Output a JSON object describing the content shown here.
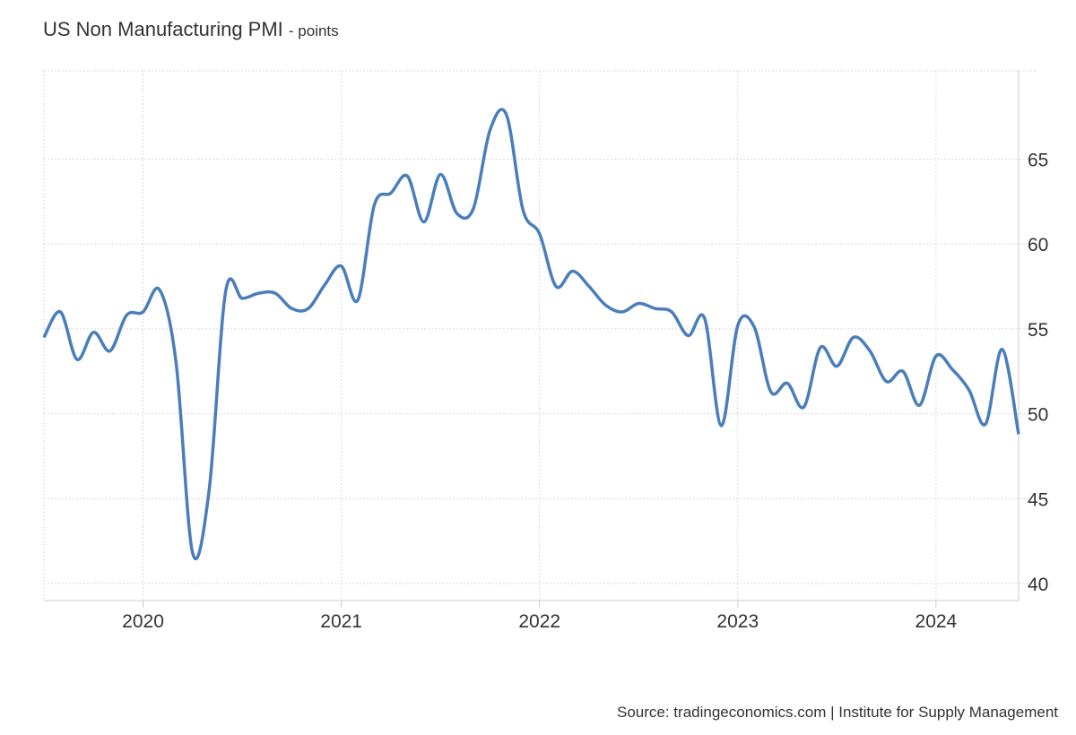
{
  "title": "US Non Manufacturing PMI",
  "unit": "- points",
  "source": "Source: tradingeconomics.com | Institute for Supply Management",
  "colors": {
    "line": "#4a7ebb",
    "grid": "#d9d9d9"
  },
  "chart_data": {
    "type": "line",
    "title": "US Non Manufacturing PMI",
    "ylabel": "points",
    "ylim": [
      39.0,
      70.2
    ],
    "xlim": [
      "2019-07",
      "2024-06"
    ],
    "grid": true,
    "y_ticks": [
      40,
      45,
      50,
      55,
      60,
      65
    ],
    "x_ticks": [
      "2020",
      "2021",
      "2022",
      "2023",
      "2024"
    ],
    "series": [
      {
        "name": "US Non Manufacturing PMI",
        "x": [
          "2019-07",
          "2019-08",
          "2019-09",
          "2019-10",
          "2019-11",
          "2019-12",
          "2020-01",
          "2020-02",
          "2020-03",
          "2020-04",
          "2020-05",
          "2020-06",
          "2020-07",
          "2020-08",
          "2020-09",
          "2020-10",
          "2020-11",
          "2020-12",
          "2021-01",
          "2021-02",
          "2021-03",
          "2021-04",
          "2021-05",
          "2021-06",
          "2021-07",
          "2021-08",
          "2021-09",
          "2021-10",
          "2021-11",
          "2021-12",
          "2022-01",
          "2022-02",
          "2022-03",
          "2022-04",
          "2022-05",
          "2022-06",
          "2022-07",
          "2022-08",
          "2022-09",
          "2022-10",
          "2022-11",
          "2022-12",
          "2023-01",
          "2023-02",
          "2023-03",
          "2023-04",
          "2023-05",
          "2023-06",
          "2023-07",
          "2023-08",
          "2023-09",
          "2023-10",
          "2023-11",
          "2023-12",
          "2024-01",
          "2024-02",
          "2024-03",
          "2024-04",
          "2024-05",
          "2024-06"
        ],
        "values": [
          54.5,
          56.0,
          53.2,
          54.8,
          53.7,
          55.8,
          56.0,
          57.3,
          53.0,
          41.8,
          45.5,
          57.2,
          56.8,
          57.1,
          57.1,
          56.2,
          56.2,
          57.6,
          58.7,
          56.7,
          62.3,
          63.0,
          64.0,
          61.3,
          64.1,
          61.8,
          62.1,
          66.7,
          67.6,
          62.0,
          60.6,
          57.5,
          58.4,
          57.5,
          56.4,
          56.0,
          56.5,
          56.2,
          56.0,
          54.6,
          55.6,
          49.3,
          55.2,
          55.1,
          51.3,
          51.8,
          50.4,
          53.9,
          52.8,
          54.5,
          53.7,
          51.9,
          52.5,
          50.5,
          53.4,
          52.6,
          51.4,
          49.4,
          53.8,
          48.8
        ]
      }
    ]
  }
}
